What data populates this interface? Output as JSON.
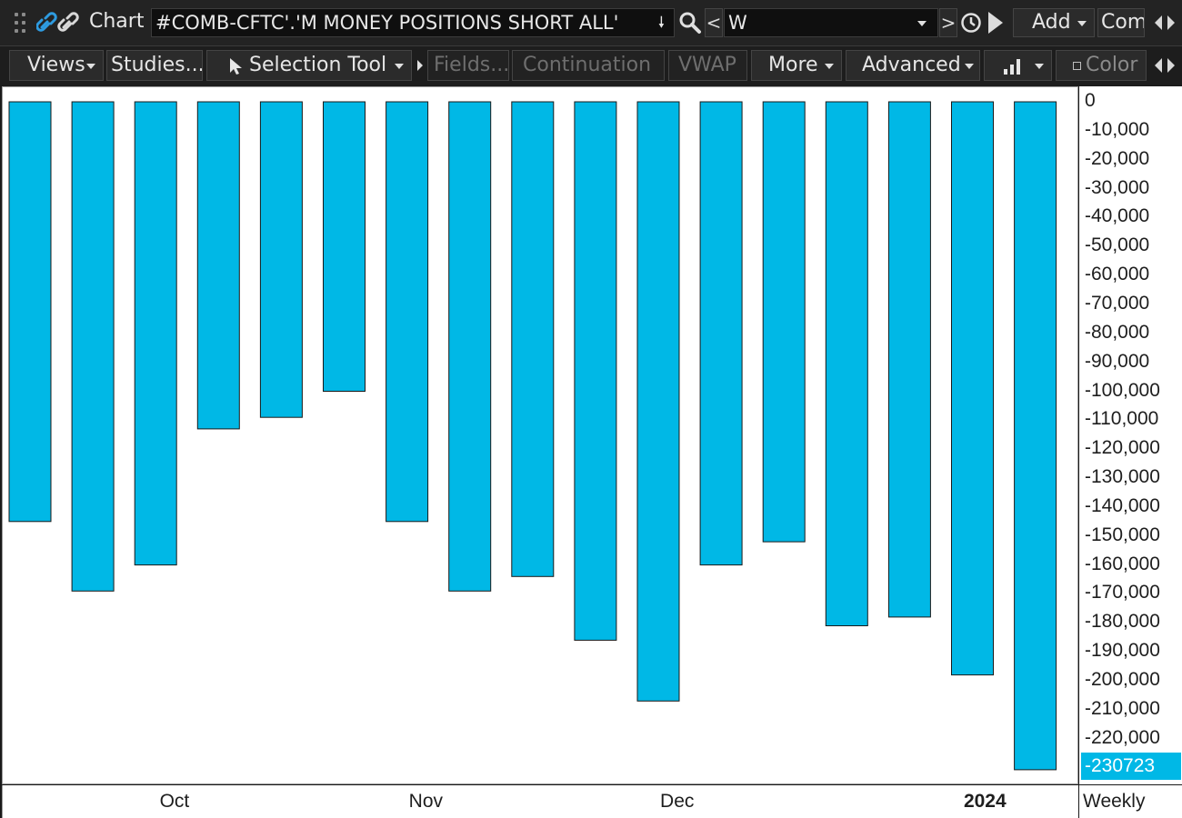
{
  "toolbar": {
    "chart_label": "Chart",
    "symbol": "#COMB-CFTC'.'M MONEY POSITIONS SHORT ALL'",
    "nav_prev": "<",
    "nav_next": ">",
    "period": "W",
    "add_label": "Add",
    "com_label": "Com"
  },
  "toolbar2": {
    "views": "Views",
    "studies": "Studies...",
    "selection_tool": "Selection Tool",
    "fields": "Fields...",
    "continuation": "Continuation",
    "vwap": "VWAP",
    "more": "More",
    "advanced": "Advanced",
    "color": "Color"
  },
  "colors": {
    "bar_fill": "#00b8e6",
    "bar_stroke": "#1a1a1a",
    "badge": "#00b8e6"
  },
  "chart_data": {
    "type": "bar",
    "aggregation": "Weekly",
    "values": [
      -145000,
      -169000,
      -160000,
      -113000,
      -109000,
      -100000,
      -145000,
      -169000,
      -164000,
      -186000,
      -207000,
      -160000,
      -152000,
      -181000,
      -178000,
      -198000,
      -230723
    ],
    "ylim": [
      0,
      -230723
    ],
    "yticks": [
      0,
      -10000,
      -20000,
      -30000,
      -40000,
      -50000,
      -60000,
      -70000,
      -80000,
      -90000,
      -100000,
      -110000,
      -120000,
      -130000,
      -140000,
      -150000,
      -160000,
      -170000,
      -180000,
      -190000,
      -200000,
      -210000,
      -220000
    ],
    "ytick_labels": [
      "0",
      "-10,000",
      "-20,000",
      "-30,000",
      "-40,000",
      "-50,000",
      "-60,000",
      "-70,000",
      "-80,000",
      "-90,000",
      "-100,000",
      "-110,000",
      "-120,000",
      "-130,000",
      "-140,000",
      "-150,000",
      "-160,000",
      "-170,000",
      "-180,000",
      "-190,000",
      "-200,000",
      "-210,000",
      "-220,000"
    ],
    "x_labels": [
      {
        "label": "Oct",
        "bar_index": 2.3,
        "bold": false
      },
      {
        "label": "Nov",
        "bar_index": 6.3,
        "bold": false
      },
      {
        "label": "Dec",
        "bar_index": 10.3,
        "bold": false
      },
      {
        "label": "2024",
        "bar_index": 15.2,
        "bold": true
      }
    ],
    "last_value_label": "-230723",
    "grid": false
  }
}
